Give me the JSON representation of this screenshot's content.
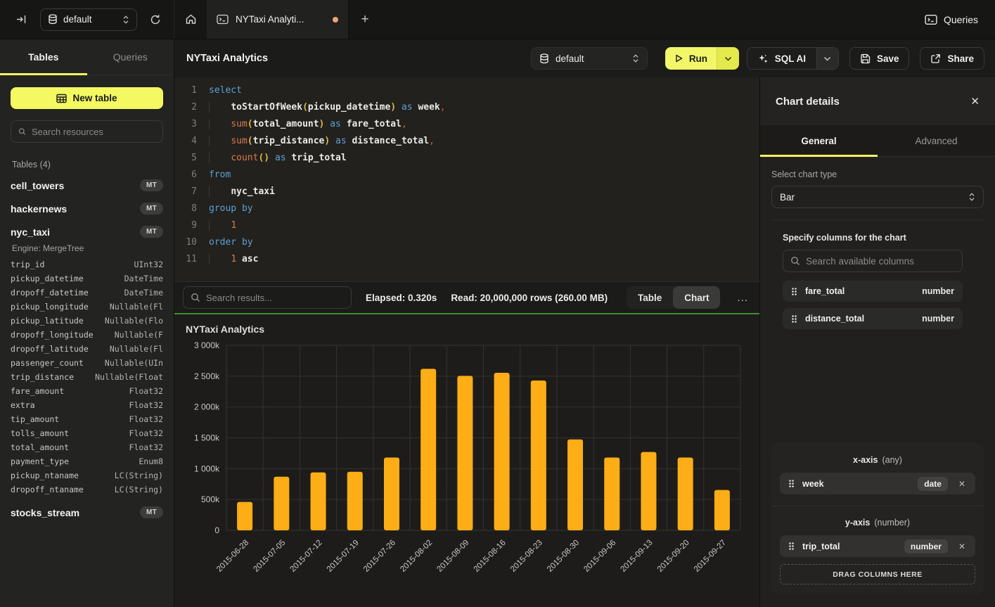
{
  "colors": {
    "accent_yellow": "#F4F961",
    "bar_fill": "#FDAD15",
    "success_green_divider": "#3E8E2F",
    "unsaved_dot_orange": "#F0A478"
  },
  "topbar": {
    "database_selector": {
      "value": "default"
    },
    "tab": {
      "title": "NYTaxi Analyti...",
      "modified": true
    },
    "queries_label": "Queries"
  },
  "sidebar": {
    "tabs": {
      "tables": "Tables",
      "queries": "Queries"
    },
    "new_table_label": "New table",
    "search_placeholder": "Search resources",
    "section_label": "Tables (4)",
    "tables": [
      {
        "name": "cell_towers",
        "badge": "MT"
      },
      {
        "name": "hackernews",
        "badge": "MT"
      },
      {
        "name": "nyc_taxi",
        "badge": "MT",
        "engine": "Engine: MergeTree",
        "columns": [
          [
            "trip_id",
            "UInt32"
          ],
          [
            "pickup_datetime",
            "DateTime"
          ],
          [
            "dropoff_datetime",
            "DateTime"
          ],
          [
            "pickup_longitude",
            "Nullable(Fl"
          ],
          [
            "pickup_latitude",
            "Nullable(Flo"
          ],
          [
            "dropoff_longitude",
            "Nullable(F"
          ],
          [
            "dropoff_latitude",
            "Nullable(Fl"
          ],
          [
            "passenger_count",
            "Nullable(UIn"
          ],
          [
            "trip_distance",
            "Nullable(Float"
          ],
          [
            "fare_amount",
            "Float32"
          ],
          [
            "extra",
            "Float32"
          ],
          [
            "tip_amount",
            "Float32"
          ],
          [
            "tolls_amount",
            "Float32"
          ],
          [
            "total_amount",
            "Float32"
          ],
          [
            "payment_type",
            "Enum8"
          ],
          [
            "pickup_ntaname",
            "LC(String)"
          ],
          [
            "dropoff_ntaname",
            "LC(String)"
          ]
        ]
      },
      {
        "name": "stocks_stream",
        "badge": "MT"
      }
    ]
  },
  "header": {
    "title": "NYTaxi Analytics"
  },
  "toolbar": {
    "database": "default",
    "run_label": "Run",
    "sql_ai_label": "SQL AI",
    "save_label": "Save",
    "share_label": "Share"
  },
  "editor": {
    "lines": [
      {
        "n": "1",
        "t": [
          [
            "kw",
            "select"
          ]
        ]
      },
      {
        "n": "2",
        "t": [
          [
            "ind",
            "    "
          ],
          [
            "id",
            "toStartOfWeek"
          ],
          [
            "par",
            "("
          ],
          [
            "id",
            "pickup_datetime"
          ],
          [
            "par",
            ")"
          ],
          [
            "pln",
            " "
          ],
          [
            "kw",
            "as"
          ],
          [
            "pln",
            " "
          ],
          [
            "id",
            "week"
          ],
          [
            "com",
            ","
          ]
        ]
      },
      {
        "n": "3",
        "t": [
          [
            "ind",
            "    "
          ],
          [
            "fn",
            "sum"
          ],
          [
            "par",
            "("
          ],
          [
            "id",
            "total_amount"
          ],
          [
            "par",
            ")"
          ],
          [
            "pln",
            " "
          ],
          [
            "kw",
            "as"
          ],
          [
            "pln",
            " "
          ],
          [
            "id",
            "fare_total"
          ],
          [
            "com",
            ","
          ]
        ]
      },
      {
        "n": "4",
        "t": [
          [
            "ind",
            "    "
          ],
          [
            "fn",
            "sum"
          ],
          [
            "par",
            "("
          ],
          [
            "id",
            "trip_distance"
          ],
          [
            "par",
            ")"
          ],
          [
            "pln",
            " "
          ],
          [
            "kw",
            "as"
          ],
          [
            "pln",
            " "
          ],
          [
            "id",
            "distance_total"
          ],
          [
            "com",
            ","
          ]
        ]
      },
      {
        "n": "5",
        "t": [
          [
            "ind",
            "    "
          ],
          [
            "fn",
            "count"
          ],
          [
            "par",
            "()"
          ],
          [
            "pln",
            " "
          ],
          [
            "kw",
            "as"
          ],
          [
            "pln",
            " "
          ],
          [
            "id",
            "trip_total"
          ]
        ]
      },
      {
        "n": "6",
        "t": [
          [
            "kw",
            "from"
          ]
        ]
      },
      {
        "n": "7",
        "t": [
          [
            "ind",
            "    "
          ],
          [
            "id",
            "nyc_taxi"
          ]
        ]
      },
      {
        "n": "8",
        "t": [
          [
            "kw",
            "group by"
          ]
        ]
      },
      {
        "n": "9",
        "t": [
          [
            "ind",
            "    "
          ],
          [
            "num",
            "1"
          ]
        ]
      },
      {
        "n": "10",
        "t": [
          [
            "kw",
            "order by"
          ]
        ]
      },
      {
        "n": "11",
        "t": [
          [
            "ind",
            "    "
          ],
          [
            "num",
            "1"
          ],
          [
            "pln",
            " "
          ],
          [
            "id",
            "asc"
          ]
        ]
      }
    ]
  },
  "results": {
    "search_placeholder": "Search results...",
    "elapsed": "Elapsed: 0.320s",
    "read": "Read: 20,000,000 rows (260.00 MB)",
    "view_table_label": "Table",
    "view_chart_label": "Chart",
    "active_view": "Chart",
    "more_label": "..."
  },
  "chart_data": {
    "type": "bar",
    "title": "NYTaxi Analytics",
    "xlabel": "week",
    "ylabel": "trip_total",
    "categories": [
      "2015-06-28",
      "2015-07-05",
      "2015-07-12",
      "2015-07-19",
      "2015-07-26",
      "2015-08-02",
      "2015-08-09",
      "2015-08-16",
      "2015-08-23",
      "2015-08-30",
      "2015-09-06",
      "2015-09-13",
      "2015-09-20",
      "2015-09-27"
    ],
    "values": [
      460000,
      870000,
      940000,
      950000,
      1180000,
      2620000,
      2505000,
      2555000,
      2430000,
      1475000,
      1180000,
      1270000,
      1180000,
      655000
    ],
    "ylim": [
      0,
      3000000
    ],
    "ytick_step": 500000,
    "ytick_labels": [
      "0",
      "500k",
      "1 000k",
      "1 500k",
      "2 000k",
      "2 500k",
      "3 000k"
    ],
    "grid": true,
    "legend_position": "none",
    "bar_color": "#FDAD15"
  },
  "chart_panel": {
    "title": "Chart details",
    "close_label": "✕",
    "tabs": {
      "general": "General",
      "advanced": "Advanced"
    },
    "active_tab": "General",
    "chart_type_label": "Select chart type",
    "chart_type_value": "Bar",
    "columns_label": "Specify columns for the chart",
    "search_placeholder": "Search available columns",
    "available_columns": [
      {
        "name": "fare_total",
        "type": "number"
      },
      {
        "name": "distance_total",
        "type": "number"
      }
    ],
    "x_axis": {
      "label": "x-axis",
      "hint": "(any)",
      "items": [
        {
          "name": "week",
          "type": "date"
        }
      ]
    },
    "y_axis": {
      "label": "y-axis",
      "hint": "(number)",
      "items": [
        {
          "name": "trip_total",
          "type": "number"
        }
      ]
    },
    "drop_label": "DRAG COLUMNS HERE"
  }
}
